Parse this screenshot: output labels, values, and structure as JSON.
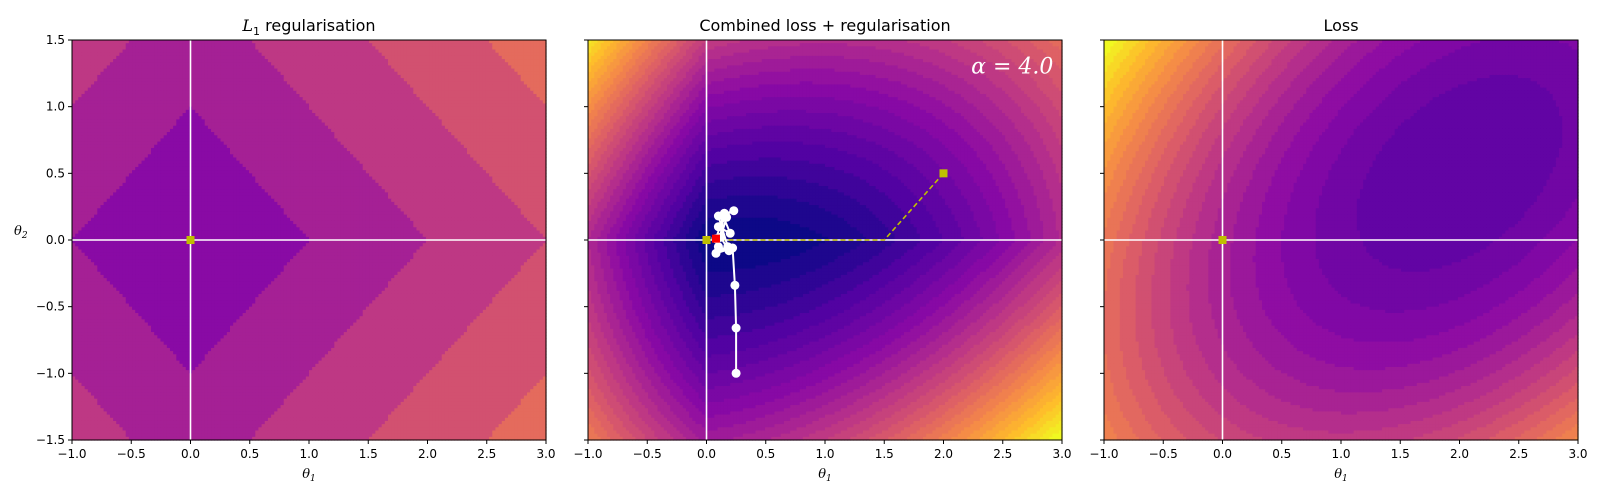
{
  "chart_data": [
    {
      "type": "contour",
      "title_main": "L",
      "title_sub": "1",
      "title_rest": " regularisation",
      "field": "l1",
      "xlabel": "θ",
      "xlabel_sub": "1",
      "ylabel": "θ",
      "ylabel_sub": "2",
      "xlim": [
        -1.0,
        3.0
      ],
      "ylim": [
        -1.5,
        1.5
      ],
      "xticks": [
        "−1.0",
        "−0.5",
        "0.0",
        "0.5",
        "1.0",
        "1.5",
        "2.0",
        "2.5",
        "3.0"
      ],
      "xtick_values": [
        -1.0,
        -0.5,
        0.0,
        0.5,
        1.0,
        1.5,
        2.0,
        2.5,
        3.0
      ],
      "yticks": [
        "−1.5",
        "−1.0",
        "−0.5",
        "0.0",
        "0.5",
        "1.0",
        "1.5"
      ],
      "ytick_values": [
        -1.5,
        -1.0,
        -0.5,
        0.0,
        0.5,
        1.0,
        1.5
      ],
      "markers": [
        {
          "x": 0.0,
          "y": 0.0,
          "color": "#bfbf00"
        }
      ]
    },
    {
      "type": "contour",
      "title": "Combined loss + regularisation",
      "field": "combined",
      "annotation": "α = 4.0",
      "xlabel": "θ",
      "xlabel_sub": "1",
      "xlim": [
        -1.0,
        3.0
      ],
      "ylim": [
        -1.5,
        1.5
      ],
      "xticks": [
        "−1.0",
        "−0.5",
        "0.0",
        "0.5",
        "1.0",
        "1.5",
        "2.0",
        "2.5",
        "3.0"
      ],
      "xtick_values": [
        -1.0,
        -0.5,
        0.0,
        0.5,
        1.0,
        1.5,
        2.0,
        2.5,
        3.0
      ],
      "ytick_values": [
        -1.5,
        -1.0,
        -0.5,
        0.0,
        0.5,
        1.0,
        1.5
      ],
      "path_reg_only": [
        [
          2.0,
          0.5
        ],
        [
          1.5,
          0.0
        ],
        [
          1.2,
          0.0
        ],
        [
          0.9,
          0.0
        ],
        [
          0.6,
          0.0
        ],
        [
          0.3,
          0.0
        ],
        [
          0.0,
          0.0
        ]
      ],
      "path_gd": [
        [
          0.25,
          -1.0
        ],
        [
          0.25,
          -0.66
        ],
        [
          0.24,
          -0.34
        ],
        [
          0.22,
          -0.06
        ],
        [
          0.08,
          -0.1
        ],
        [
          0.18,
          -0.05
        ],
        [
          0.1,
          0.18
        ],
        [
          0.23,
          0.22
        ],
        [
          0.14,
          0.18
        ],
        [
          0.2,
          0.05
        ],
        [
          0.1,
          0.1
        ],
        [
          0.17,
          0.17
        ],
        [
          0.12,
          0.02
        ],
        [
          0.19,
          -0.08
        ],
        [
          0.1,
          -0.05
        ],
        [
          0.15,
          0.2
        ],
        [
          0.08,
          0.01
        ]
      ],
      "markers": [
        {
          "x": 2.0,
          "y": 0.5,
          "color": "#bfbf00"
        },
        {
          "x": 0.0,
          "y": 0.0,
          "color": "#bfbf00"
        },
        {
          "x": 0.08,
          "y": 0.01,
          "color": "#ff0000"
        }
      ]
    },
    {
      "type": "contour",
      "title": "Loss",
      "field": "loss",
      "xlabel": "θ",
      "xlabel_sub": "1",
      "xlim": [
        -1.0,
        3.0
      ],
      "ylim": [
        -1.5,
        1.5
      ],
      "xticks": [
        "−1.0",
        "−0.5",
        "0.0",
        "0.5",
        "1.0",
        "1.5",
        "2.0",
        "2.5",
        "3.0"
      ],
      "xtick_values": [
        -1.0,
        -0.5,
        0.0,
        0.5,
        1.0,
        1.5,
        2.0,
        2.5,
        3.0
      ],
      "ytick_values": [
        -1.5,
        -1.0,
        -0.5,
        0.0,
        0.5,
        1.0,
        1.5
      ],
      "markers": [
        {
          "x": 0.0,
          "y": 0.0,
          "color": "#bfbf00"
        }
      ]
    }
  ]
}
